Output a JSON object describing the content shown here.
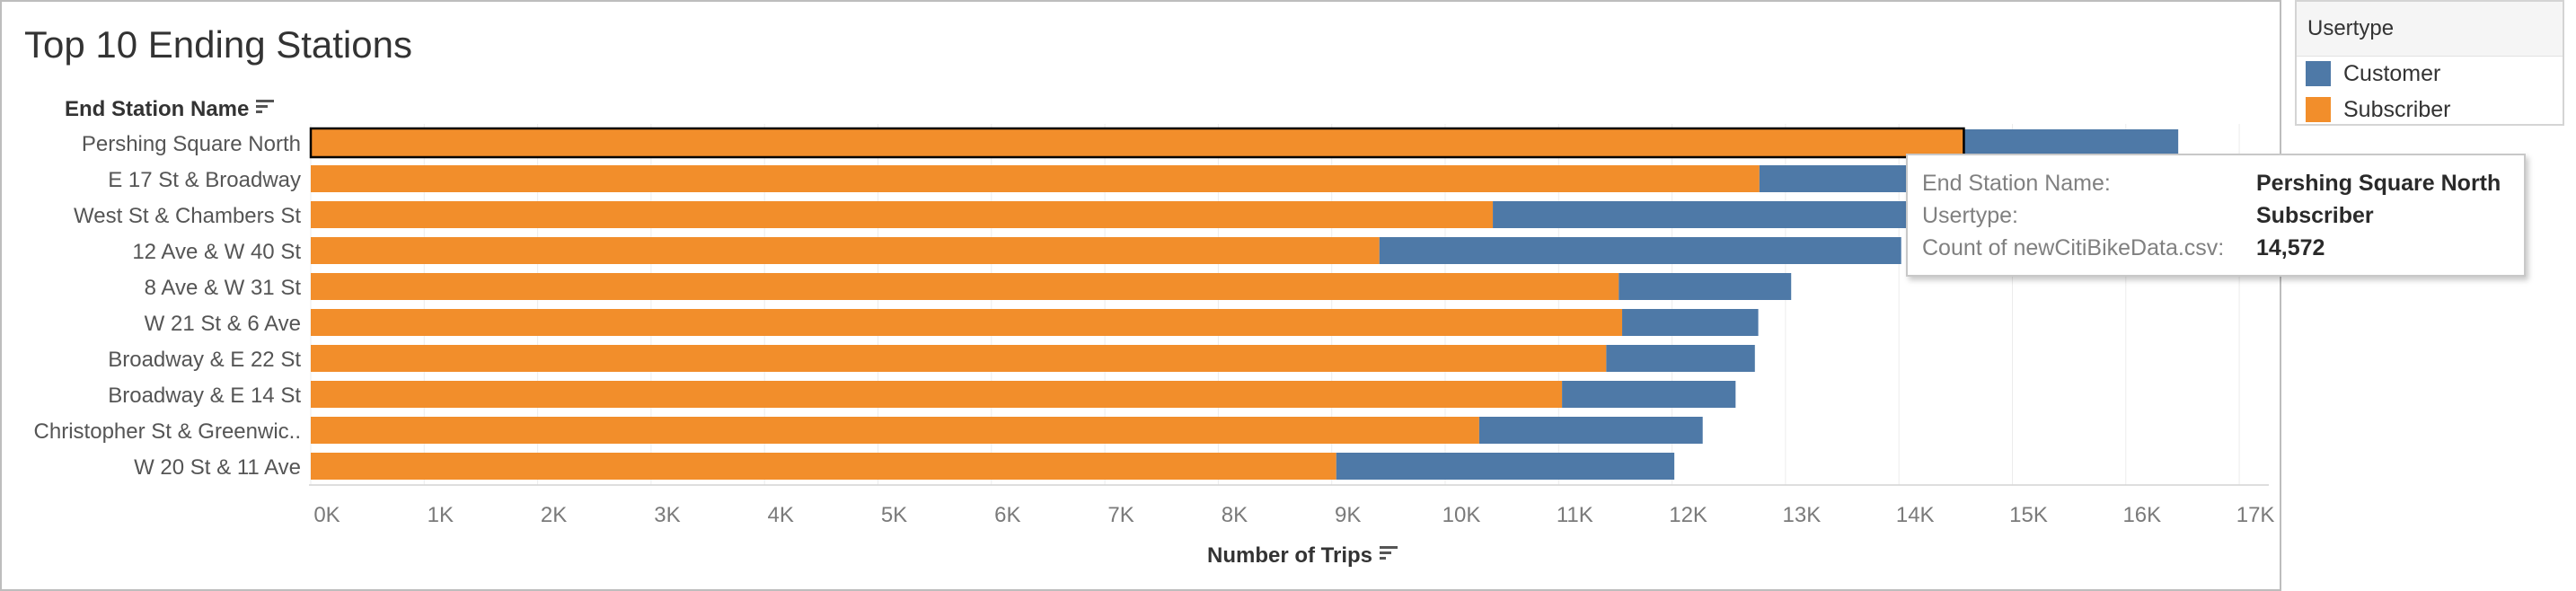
{
  "chart_data": {
    "type": "bar",
    "orientation": "horizontal",
    "stacked": true,
    "title": "Top 10 Ending Stations",
    "xlabel": "Number of Trips",
    "ylabel": "End Station Name",
    "xlim": [
      0,
      17500
    ],
    "x_ticks": [
      {
        "value": 0,
        "label": "0K"
      },
      {
        "value": 1000,
        "label": "1K"
      },
      {
        "value": 2000,
        "label": "2K"
      },
      {
        "value": 3000,
        "label": "3K"
      },
      {
        "value": 4000,
        "label": "4K"
      },
      {
        "value": 5000,
        "label": "5K"
      },
      {
        "value": 6000,
        "label": "6K"
      },
      {
        "value": 7000,
        "label": "7K"
      },
      {
        "value": 8000,
        "label": "8K"
      },
      {
        "value": 9000,
        "label": "9K"
      },
      {
        "value": 10000,
        "label": "10K"
      },
      {
        "value": 11000,
        "label": "11K"
      },
      {
        "value": 12000,
        "label": "12K"
      },
      {
        "value": 13000,
        "label": "13K"
      },
      {
        "value": 14000,
        "label": "14K"
      },
      {
        "value": 15000,
        "label": "15K"
      },
      {
        "value": 16000,
        "label": "16K"
      },
      {
        "value": 17000,
        "label": "17K"
      }
    ],
    "grid": true,
    "highlighted": {
      "category_index": 0,
      "series": "Subscriber"
    },
    "categories": [
      "Pershing Square North",
      "E 17 St & Broadway",
      "West St & Chambers St",
      "12 Ave & W 40 St",
      "8 Ave & W 31 St",
      "W 21 St & 6 Ave",
      "Broadway & E 22 St",
      "Broadway & E 14 St",
      "Christopher St & Greenwic..",
      "W 20 St & 11 Ave"
    ],
    "series": [
      {
        "name": "Subscriber",
        "color": "#f28e2b",
        "values": [
          14572,
          12770,
          10420,
          9420,
          11530,
          11560,
          11420,
          11030,
          10300,
          9040
        ]
      },
      {
        "name": "Customer",
        "color": "#4e79a7",
        "values": [
          1890,
          2350,
          3760,
          4600,
          1520,
          1200,
          1310,
          1530,
          1970,
          2980
        ]
      }
    ]
  },
  "legend": {
    "title": "Usertype",
    "placement": "top-right",
    "items": [
      {
        "label": "Customer",
        "color": "#4e79a7"
      },
      {
        "label": "Subscriber",
        "color": "#f28e2b"
      }
    ]
  },
  "tooltip": {
    "rows": [
      {
        "key": "End Station Name:",
        "value": "Pershing Square North"
      },
      {
        "key": "Usertype:",
        "value": "Subscriber"
      },
      {
        "key": "Count of newCitiBikeData.csv:",
        "value": "14,572"
      }
    ]
  },
  "sort_icon": "sort-descending-icon"
}
